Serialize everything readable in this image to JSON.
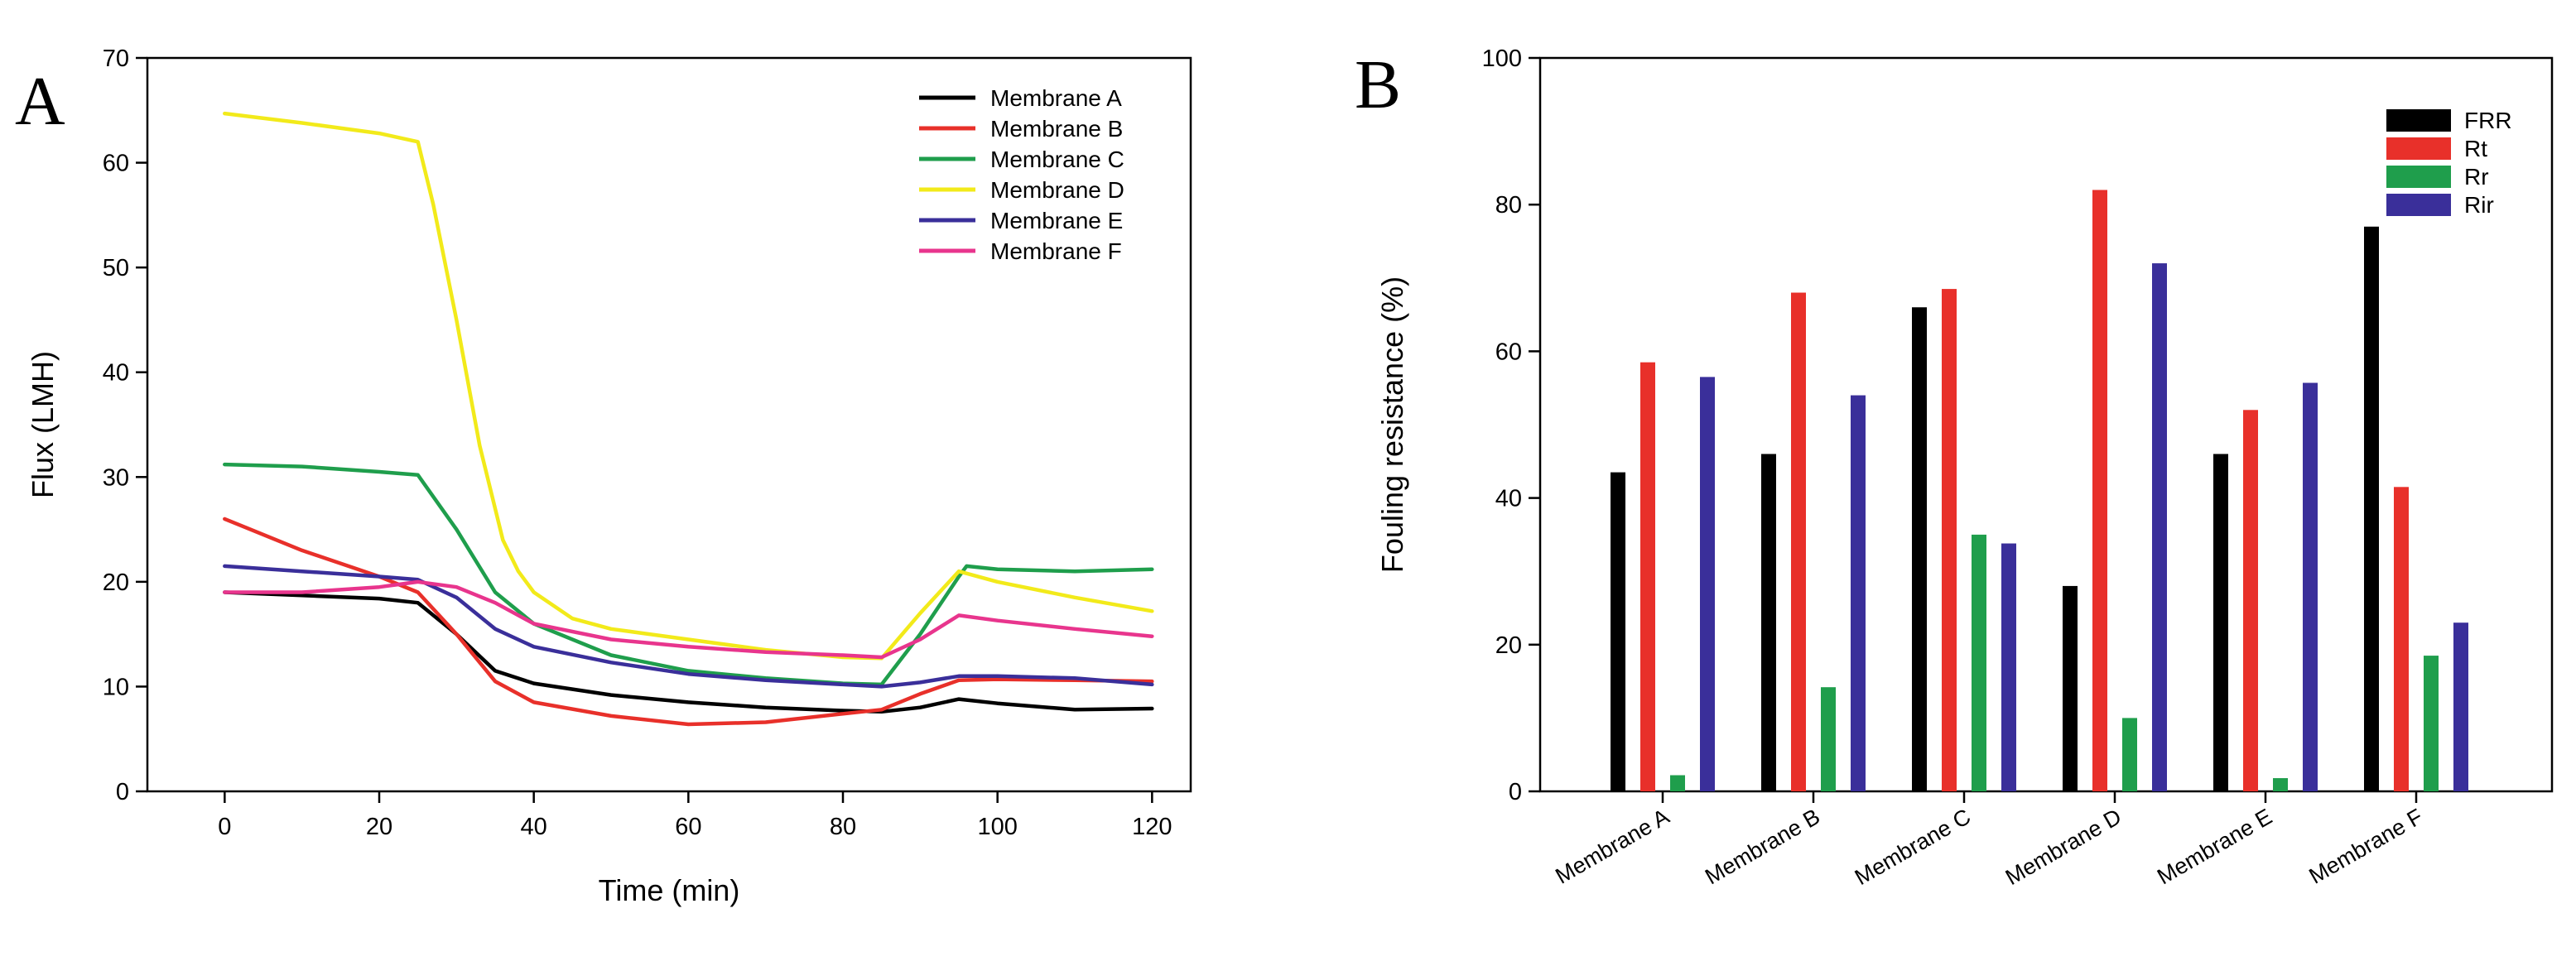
{
  "chart_data": [
    {
      "type": "line",
      "panel_label": "A",
      "xlabel": "Time (min)",
      "ylabel": "Flux (LMH)",
      "xlim": [
        -10,
        125
      ],
      "ylim": [
        0,
        70
      ],
      "xticks": [
        0,
        20,
        40,
        60,
        80,
        100,
        120
      ],
      "yticks": [
        0,
        10,
        20,
        30,
        40,
        50,
        60,
        70
      ],
      "legend_position": "top-right",
      "series": [
        {
          "name": "Membrane A",
          "color": "#000000",
          "x": [
            0,
            10,
            20,
            25,
            30,
            35,
            40,
            50,
            60,
            70,
            80,
            85,
            90,
            95,
            100,
            110,
            120
          ],
          "y": [
            19,
            18.7,
            18.4,
            18,
            15,
            11.5,
            10.3,
            9.2,
            8.5,
            8,
            7.7,
            7.6,
            8,
            8.8,
            8.4,
            7.8,
            7.9
          ]
        },
        {
          "name": "Membrane B",
          "color": "#e8302a",
          "x": [
            0,
            10,
            20,
            25,
            30,
            35,
            40,
            50,
            60,
            70,
            80,
            85,
            90,
            95,
            100,
            110,
            120
          ],
          "y": [
            26,
            23,
            20.5,
            19,
            15,
            10.5,
            8.5,
            7.2,
            6.4,
            6.6,
            7.4,
            7.8,
            9.3,
            10.6,
            10.7,
            10.6,
            10.5
          ]
        },
        {
          "name": "Membrane C",
          "color": "#1f9e4c",
          "x": [
            0,
            10,
            20,
            25,
            30,
            35,
            40,
            50,
            60,
            70,
            80,
            85,
            90,
            95,
            96,
            100,
            110,
            120
          ],
          "y": [
            31.2,
            31,
            30.5,
            30.2,
            25,
            19,
            16,
            13,
            11.5,
            10.8,
            10.3,
            10.2,
            15,
            20.5,
            21.5,
            21.2,
            21,
            21.2
          ]
        },
        {
          "name": "Membrane D",
          "color": "#f2ea1a",
          "x": [
            0,
            10,
            20,
            25,
            27,
            30,
            33,
            36,
            38,
            40,
            45,
            50,
            60,
            70,
            80,
            85,
            90,
            95,
            100,
            110,
            120
          ],
          "y": [
            64.7,
            63.8,
            62.8,
            62,
            56,
            45,
            33,
            24,
            21,
            19,
            16.5,
            15.5,
            14.5,
            13.5,
            12.8,
            12.7,
            17,
            21,
            20,
            18.5,
            17.2
          ]
        },
        {
          "name": "Membrane E",
          "color": "#3a2f9a",
          "x": [
            0,
            10,
            20,
            25,
            30,
            35,
            40,
            50,
            60,
            70,
            80,
            85,
            90,
            95,
            100,
            110,
            120
          ],
          "y": [
            21.5,
            21,
            20.5,
            20.2,
            18.5,
            15.5,
            13.8,
            12.3,
            11.2,
            10.6,
            10.2,
            10,
            10.4,
            11,
            11,
            10.8,
            10.2
          ]
        },
        {
          "name": "Membrane F",
          "color": "#e8358d",
          "x": [
            0,
            10,
            20,
            25,
            30,
            35,
            40,
            50,
            60,
            70,
            80,
            85,
            90,
            95,
            100,
            110,
            120
          ],
          "y": [
            19,
            19,
            19.5,
            20,
            19.5,
            18,
            16,
            14.5,
            13.8,
            13.3,
            13,
            12.8,
            14.5,
            16.8,
            16.3,
            15.5,
            14.8
          ]
        }
      ]
    },
    {
      "type": "bar",
      "panel_label": "B",
      "xlabel": "",
      "ylabel": "Fouling resistance (%)",
      "ylim": [
        0,
        100
      ],
      "yticks": [
        0,
        20,
        40,
        60,
        80,
        100
      ],
      "legend_position": "top-right",
      "categories": [
        "Membrane A",
        "Membrane B",
        "Membrane C",
        "Membrane D",
        "Membrane E",
        "Membrane F"
      ],
      "series": [
        {
          "name": "FRR",
          "color": "#000000",
          "values": [
            43.5,
            46,
            66,
            28,
            46,
            77
          ]
        },
        {
          "name": "Rt",
          "color": "#e8302a",
          "values": [
            58.5,
            68,
            68.5,
            82,
            52,
            41.5
          ]
        },
        {
          "name": "Rr",
          "color": "#1f9e4c",
          "values": [
            2.2,
            14.2,
            35,
            10,
            1.8,
            18.5
          ]
        },
        {
          "name": "Rir",
          "color": "#3a2f9a",
          "values": [
            56.5,
            54,
            33.8,
            72,
            55.7,
            23
          ]
        }
      ]
    }
  ]
}
